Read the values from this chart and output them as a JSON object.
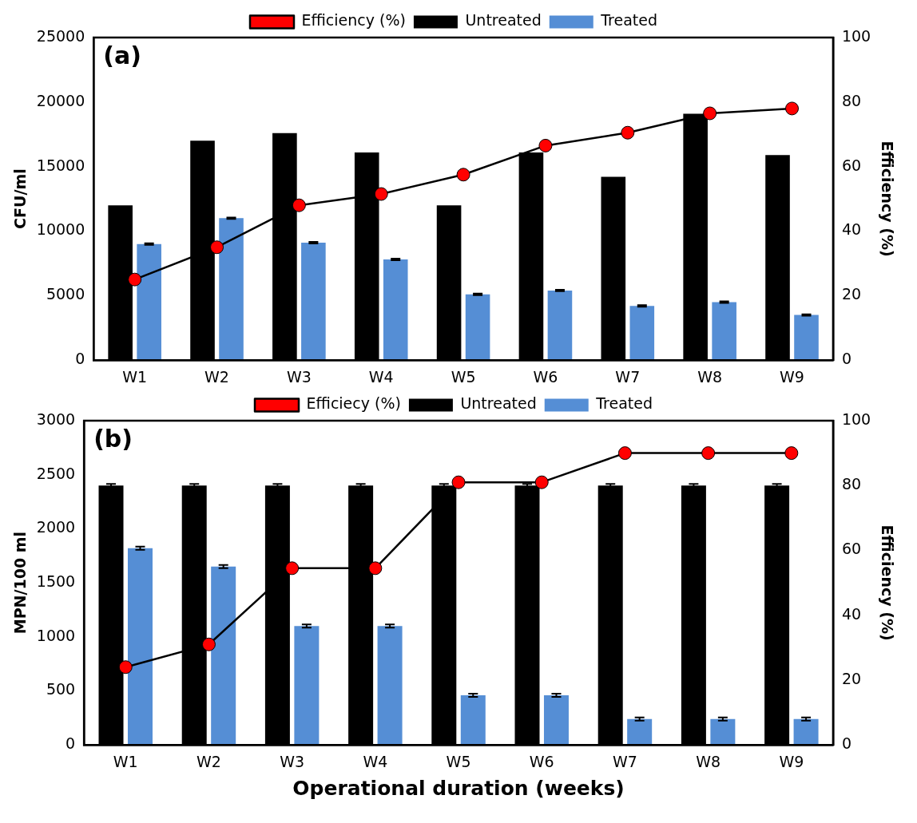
{
  "chart_data": [
    {
      "type": "bar",
      "categories": [
        "W1",
        "W2",
        "W3",
        "W4",
        "W5",
        "W6",
        "W7",
        "W8",
        "W9"
      ],
      "ylabel": "CFU/ml",
      "y2label": "Efficiency (%)",
      "annotations": [
        "(a)"
      ],
      "ylim": [
        0,
        25000
      ],
      "yticks": [
        0,
        5000,
        10000,
        15000,
        20000,
        25000
      ],
      "y2lim": [
        0,
        100
      ],
      "y2ticks": [
        0,
        20,
        40,
        60,
        80,
        100
      ],
      "grid": false,
      "legend": "top",
      "series": [
        {
          "name": "Untreated",
          "color": "#000000",
          "values": [
            12000,
            17000,
            17600,
            16100,
            12000,
            16100,
            14200,
            19100,
            15900
          ]
        },
        {
          "name": "Treated",
          "color": "#558ed5",
          "values": [
            9000,
            11000,
            9100,
            7800,
            5100,
            5400,
            4200,
            4500,
            3500
          ],
          "errors": [
            60,
            60,
            60,
            60,
            60,
            60,
            60,
            60,
            60
          ]
        },
        {
          "name": "Efficiency (%)",
          "type": "line",
          "axis": "y2",
          "color": "#ff0000",
          "marker": "circle",
          "values": [
            25,
            35,
            48,
            51.5,
            57.5,
            66.5,
            70.5,
            76.5,
            78
          ]
        }
      ]
    },
    {
      "type": "bar",
      "categories": [
        "W1",
        "W2",
        "W3",
        "W4",
        "W5",
        "W6",
        "W7",
        "W8",
        "W9"
      ],
      "xlabel": "Operational duration (weeks)",
      "ylabel": "MPN/100 ml",
      "y2label": "Efficiency (%)",
      "annotations": [
        "(b)"
      ],
      "ylim": [
        0,
        3000
      ],
      "yticks": [
        0,
        500,
        1000,
        1500,
        2000,
        2500,
        3000
      ],
      "y2lim": [
        0,
        100
      ],
      "y2ticks": [
        0,
        20,
        40,
        60,
        80,
        100
      ],
      "grid": false,
      "legend": "top",
      "series": [
        {
          "name": "Untreated",
          "color": "#000000",
          "values": [
            2400,
            2400,
            2400,
            2400,
            2400,
            2400,
            2400,
            2400,
            2400
          ],
          "errors": [
            15,
            15,
            15,
            15,
            15,
            15,
            15,
            15,
            15
          ]
        },
        {
          "name": "Treated",
          "color": "#558ed5",
          "values": [
            1820,
            1650,
            1100,
            1100,
            460,
            460,
            240,
            240,
            240
          ],
          "errors": [
            15,
            15,
            15,
            15,
            15,
            15,
            15,
            15,
            15
          ]
        },
        {
          "name": "Efficiecy (%)",
          "type": "line",
          "axis": "y2",
          "color": "#ff0000",
          "marker": "circle",
          "values": [
            24,
            31,
            54.5,
            54.5,
            81,
            81,
            90,
            90,
            90
          ]
        }
      ]
    }
  ]
}
